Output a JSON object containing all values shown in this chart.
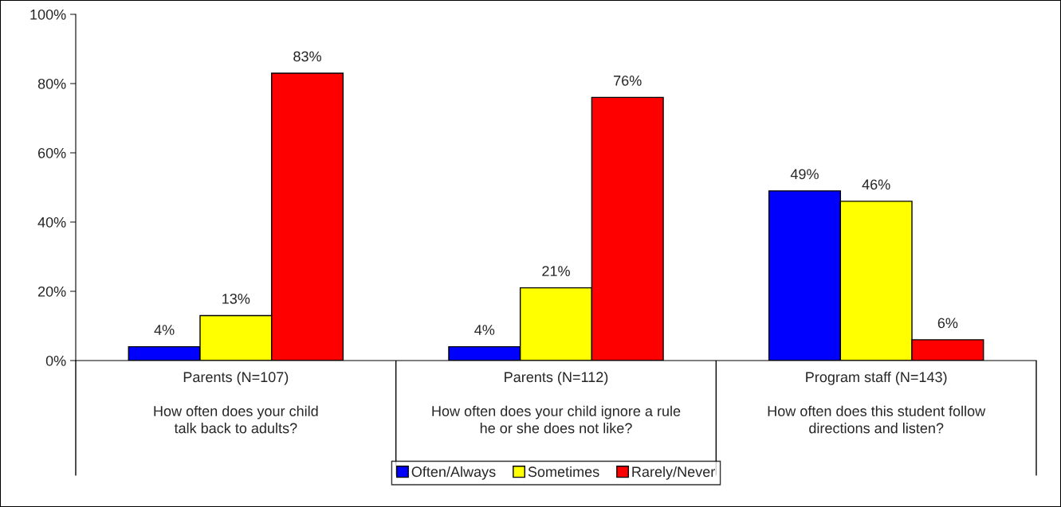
{
  "chart_data": {
    "type": "bar",
    "categories": [
      "Parents (N=107)\n\nHow often does your child\ntalk back to adults?",
      "Parents (N=112)\n\nHow often does your child ignore a rule\nhe or she does not like?",
      "Program staff (N=143)\n\nHow often does this student follow\ndirections and listen?"
    ],
    "series": [
      {
        "name": "Often/Always",
        "color": "#0000ff",
        "values": [
          4,
          4,
          49
        ],
        "value_labels": [
          "4%",
          "4%",
          "49%"
        ]
      },
      {
        "name": "Sometimes",
        "color": "#ffff00",
        "values": [
          13,
          21,
          46
        ],
        "value_labels": [
          "13%",
          "21%",
          "46%"
        ]
      },
      {
        "name": "Rarely/Never",
        "color": "#ff0000",
        "values": [
          83,
          76,
          6
        ],
        "value_labels": [
          "83%",
          "76%",
          "6%"
        ]
      }
    ],
    "ylim": [
      0,
      100
    ],
    "yticks": [
      {
        "value": 0,
        "label": "0%"
      },
      {
        "value": 20,
        "label": "20%"
      },
      {
        "value": 40,
        "label": "40%"
      },
      {
        "value": 60,
        "label": "60%"
      },
      {
        "value": 80,
        "label": "80%"
      },
      {
        "value": 100,
        "label": "100%"
      }
    ],
    "grid": false,
    "legend": "bottom"
  }
}
